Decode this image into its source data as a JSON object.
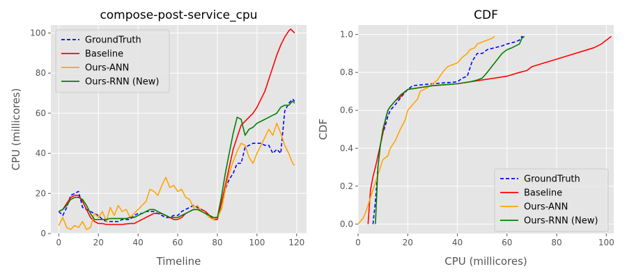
{
  "colors": {
    "GroundTruth": "#0000ff",
    "Baseline": "#ff0000",
    "Ours-ANN": "#ffa500",
    "Ours-RNN (New)": "#008000",
    "axes_bg": "#e5e5e5",
    "grid": "#ffffff"
  },
  "chart_data": [
    {
      "type": "line",
      "title": "compose-post-service_cpu",
      "xlabel": "Timeline",
      "ylabel": "CPU (millicores)",
      "xlim": [
        -4,
        125
      ],
      "ylim": [
        0,
        104
      ],
      "xticks": [
        0,
        20,
        40,
        60,
        80,
        100,
        120
      ],
      "yticks": [
        0,
        20,
        40,
        60,
        80,
        100
      ],
      "grid": true,
      "legend": "upper-left",
      "series": [
        {
          "name": "GroundTruth",
          "style": "dashed",
          "x": [
            0,
            2,
            4,
            6,
            8,
            10,
            12,
            14,
            16,
            18,
            20,
            22,
            24,
            26,
            28,
            30,
            32,
            34,
            36,
            38,
            40,
            42,
            44,
            46,
            48,
            50,
            52,
            54,
            56,
            58,
            60,
            62,
            64,
            66,
            68,
            70,
            72,
            74,
            76,
            78,
            80,
            82,
            84,
            86,
            88,
            90,
            92,
            94,
            96,
            98,
            100,
            102,
            104,
            106,
            108,
            110,
            112,
            114,
            116,
            118,
            119
          ],
          "y": [
            11,
            9,
            13,
            19,
            20,
            21,
            13,
            12,
            11,
            10,
            9,
            7,
            6,
            6,
            6,
            6,
            7,
            7,
            7,
            9,
            10,
            10,
            11,
            11,
            11,
            10,
            9,
            8,
            8,
            9,
            9,
            11,
            12,
            13,
            14,
            13,
            12,
            11,
            9,
            8,
            8,
            12,
            22,
            27,
            30,
            35,
            35,
            43,
            44,
            45,
            45,
            45,
            44,
            44,
            40,
            42,
            40,
            61,
            65,
            67,
            66
          ]
        },
        {
          "name": "Baseline",
          "style": "solid",
          "x": [
            0,
            2,
            4,
            6,
            8,
            10,
            12,
            14,
            16,
            18,
            20,
            22,
            24,
            26,
            28,
            30,
            32,
            34,
            36,
            38,
            40,
            42,
            44,
            46,
            48,
            50,
            52,
            54,
            56,
            58,
            60,
            62,
            64,
            66,
            68,
            70,
            72,
            74,
            76,
            78,
            80,
            82,
            84,
            86,
            88,
            90,
            92,
            94,
            96,
            98,
            100,
            102,
            104,
            106,
            108,
            110,
            112,
            114,
            116,
            117,
            119
          ],
          "y": [
            11,
            12,
            15,
            18,
            19,
            19,
            16,
            12,
            8,
            6,
            5,
            5,
            4.5,
            4.5,
            4.5,
            4.5,
            4.5,
            4.8,
            5,
            5,
            6,
            7,
            8,
            9,
            10,
            10,
            10,
            9,
            8,
            7,
            7,
            8,
            10,
            11,
            12,
            12,
            12,
            11,
            9,
            7,
            7,
            15,
            24,
            33,
            42,
            48,
            54,
            56,
            58,
            60,
            63,
            67,
            71,
            77,
            83,
            89,
            94,
            98,
            101,
            102,
            100
          ]
        },
        {
          "name": "Ours-ANN",
          "style": "solid",
          "x": [
            0,
            2,
            4,
            6,
            8,
            10,
            12,
            14,
            16,
            18,
            20,
            22,
            24,
            26,
            28,
            30,
            32,
            34,
            36,
            38,
            40,
            42,
            44,
            46,
            48,
            50,
            52,
            54,
            56,
            58,
            60,
            62,
            64,
            66,
            68,
            70,
            72,
            74,
            76,
            78,
            80,
            82,
            84,
            86,
            88,
            90,
            92,
            94,
            96,
            98,
            100,
            102,
            104,
            106,
            108,
            110,
            112,
            114,
            116,
            118,
            119
          ],
          "y": [
            4,
            8,
            3,
            2,
            4,
            3,
            6,
            2,
            3,
            10,
            8,
            11,
            6,
            13,
            9,
            14,
            11,
            12,
            8,
            10,
            12,
            14,
            16,
            22,
            21,
            19,
            24,
            28,
            23,
            24,
            21,
            22,
            18,
            17,
            13,
            14,
            11,
            10,
            8,
            7,
            8,
            12,
            22,
            30,
            36,
            41,
            45,
            44,
            38,
            35,
            40,
            44,
            48,
            52,
            49,
            55,
            50,
            44,
            40,
            35,
            34
          ]
        },
        {
          "name": "Ours-RNN (New)",
          "style": "solid",
          "x": [
            0,
            2,
            4,
            6,
            8,
            10,
            12,
            14,
            16,
            18,
            20,
            22,
            24,
            26,
            28,
            30,
            32,
            34,
            36,
            38,
            40,
            42,
            44,
            46,
            48,
            50,
            52,
            54,
            56,
            58,
            60,
            62,
            64,
            66,
            68,
            70,
            72,
            74,
            76,
            78,
            80,
            82,
            84,
            86,
            88,
            90,
            92,
            94,
            96,
            98,
            100,
            102,
            104,
            106,
            108,
            110,
            112,
            114,
            116,
            118,
            119
          ],
          "y": [
            11,
            12,
            14,
            17,
            18,
            18,
            17,
            14,
            10,
            7,
            7,
            7,
            7,
            7.5,
            7.5,
            7.5,
            7.5,
            7.5,
            8,
            8,
            9,
            10,
            11,
            12,
            12,
            11,
            10,
            9,
            8,
            8,
            8,
            9,
            10,
            11,
            12,
            12,
            11,
            10,
            9,
            8,
            8,
            18,
            30,
            40,
            50,
            58,
            57,
            49,
            52,
            53,
            55,
            56,
            57,
            58,
            59,
            60,
            63,
            64,
            64,
            66,
            65
          ]
        }
      ]
    },
    {
      "type": "line",
      "title": "CDF",
      "xlabel": "CPU (millicores)",
      "ylabel": "CDF",
      "xlim": [
        0,
        103
      ],
      "ylim": [
        -0.05,
        1.05
      ],
      "xticks": [
        0,
        20,
        40,
        60,
        80,
        100
      ],
      "yticks": [
        0.0,
        0.2,
        0.4,
        0.6,
        0.8,
        1.0
      ],
      "grid": true,
      "legend": "lower-right",
      "series": [
        {
          "name": "GroundTruth",
          "style": "dashed",
          "x": [
            6,
            7,
            8,
            9,
            10,
            11,
            12,
            13,
            15,
            18,
            20,
            22,
            30,
            40,
            42,
            44,
            45,
            46,
            47,
            48,
            50,
            52,
            55,
            58,
            60,
            63,
            65,
            66,
            67
          ],
          "y": [
            0,
            0.12,
            0.3,
            0.42,
            0.48,
            0.52,
            0.57,
            0.6,
            0.63,
            0.68,
            0.71,
            0.73,
            0.74,
            0.75,
            0.77,
            0.78,
            0.82,
            0.86,
            0.88,
            0.9,
            0.9,
            0.92,
            0.93,
            0.94,
            0.95,
            0.96,
            0.97,
            0.99,
            0.98
          ]
        },
        {
          "name": "Baseline",
          "style": "solid",
          "x": [
            4,
            5,
            6,
            7,
            8,
            9,
            10,
            11,
            12,
            13,
            15,
            17,
            19,
            20,
            25,
            30,
            40,
            50,
            55,
            60,
            65,
            68,
            70,
            75,
            80,
            85,
            90,
            95,
            98,
            100,
            101,
            102
          ],
          "y": [
            0,
            0.18,
            0.25,
            0.3,
            0.36,
            0.42,
            0.48,
            0.55,
            0.6,
            0.62,
            0.65,
            0.67,
            0.7,
            0.71,
            0.72,
            0.73,
            0.74,
            0.76,
            0.77,
            0.78,
            0.8,
            0.81,
            0.83,
            0.85,
            0.87,
            0.89,
            0.91,
            0.93,
            0.95,
            0.97,
            0.98,
            0.99
          ]
        },
        {
          "name": "Ours-ANN",
          "style": "solid",
          "x": [
            0,
            2,
            3,
            4,
            5,
            6,
            7,
            8,
            9,
            10,
            12,
            13,
            15,
            17,
            19,
            20,
            22,
            24,
            25,
            28,
            30,
            32,
            34,
            36,
            38,
            40,
            42,
            44,
            45,
            47,
            48,
            50,
            52,
            54,
            55
          ],
          "y": [
            0,
            0.03,
            0.06,
            0.1,
            0.14,
            0.18,
            0.22,
            0.26,
            0.3,
            0.34,
            0.36,
            0.4,
            0.44,
            0.5,
            0.55,
            0.6,
            0.63,
            0.66,
            0.7,
            0.72,
            0.74,
            0.76,
            0.8,
            0.83,
            0.84,
            0.85,
            0.88,
            0.9,
            0.92,
            0.93,
            0.95,
            0.96,
            0.97,
            0.98,
            0.99
          ]
        },
        {
          "name": "Ours-RNN (New)",
          "style": "solid",
          "x": [
            7,
            7.5,
            8,
            9,
            10,
            11,
            12,
            13,
            15,
            17,
            19,
            20,
            25,
            30,
            40,
            45,
            48,
            50,
            52,
            55,
            58,
            60,
            62,
            65,
            66,
            67
          ],
          "y": [
            0,
            0.15,
            0.3,
            0.42,
            0.5,
            0.55,
            0.6,
            0.62,
            0.65,
            0.68,
            0.7,
            0.71,
            0.72,
            0.73,
            0.74,
            0.75,
            0.76,
            0.77,
            0.8,
            0.85,
            0.9,
            0.92,
            0.93,
            0.95,
            0.98,
            0.99
          ]
        }
      ]
    }
  ]
}
